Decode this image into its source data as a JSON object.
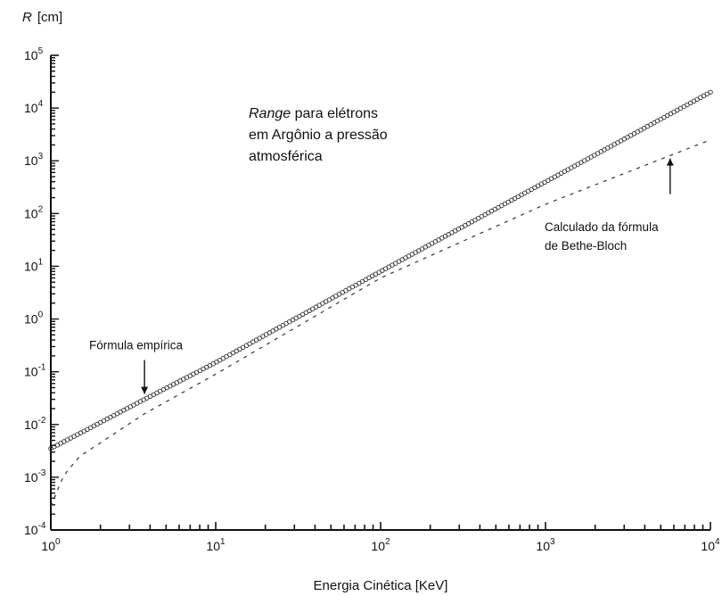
{
  "chart_data": {
    "type": "scatter",
    "title": "",
    "title_lines": [
      {
        "italic": "Range",
        "rest": " para elétrons"
      },
      {
        "italic": "",
        "rest": "em Argônio a pressão"
      },
      {
        "italic": "",
        "rest": "atmosférica"
      }
    ],
    "xlabel": "Energia Cinética [KeV]",
    "ylabel_symbol": "R",
    "ylabel_unit": "[cm]",
    "xscale": "log",
    "yscale": "log",
    "xlim": [
      1,
      10000
    ],
    "ylim": [
      0.0001,
      100000
    ],
    "x_ticks": [
      {
        "base": "10",
        "exp": "0"
      },
      {
        "base": "10",
        "exp": "1"
      },
      {
        "base": "10",
        "exp": "2"
      },
      {
        "base": "10",
        "exp": "3"
      },
      {
        "base": "10",
        "exp": "4"
      }
    ],
    "y_ticks": [
      {
        "base": "10",
        "exp": "-4"
      },
      {
        "base": "10",
        "exp": "-3"
      },
      {
        "base": "10",
        "exp": "-2"
      },
      {
        "base": "10",
        "exp": "-1"
      },
      {
        "base": "10",
        "exp": "0"
      },
      {
        "base": "10",
        "exp": "1"
      },
      {
        "base": "10",
        "exp": "2"
      },
      {
        "base": "10",
        "exp": "3"
      },
      {
        "base": "10",
        "exp": "4"
      },
      {
        "base": "10",
        "exp": "5"
      }
    ],
    "grid": false,
    "series": [
      {
        "style": "open-circles",
        "points": [
          [
            1,
            0.0035
          ],
          [
            3.7,
            0.03
          ],
          [
            10,
            0.15
          ],
          [
            100,
            8
          ],
          [
            1000,
            400
          ],
          [
            10000,
            20000
          ]
        ]
      },
      {
        "style": "dashed",
        "points": [
          [
            1,
            0.00028
          ],
          [
            1.2,
            0.0011
          ],
          [
            1.5,
            0.0025
          ],
          [
            2,
            0.0045
          ],
          [
            3.7,
            0.016
          ],
          [
            10,
            0.09
          ],
          [
            100,
            6
          ],
          [
            1000,
            150
          ],
          [
            10000,
            2500
          ]
        ]
      }
    ],
    "annotations": [
      {
        "lines": [
          "Fórmula empírica"
        ],
        "x": 3.7,
        "y": 0.03,
        "arrow": "down"
      },
      {
        "lines": [
          "Calculado da fórmula",
          "de Bethe-Bloch"
        ],
        "x": 5700,
        "y": 1400,
        "arrow": "up"
      }
    ]
  }
}
